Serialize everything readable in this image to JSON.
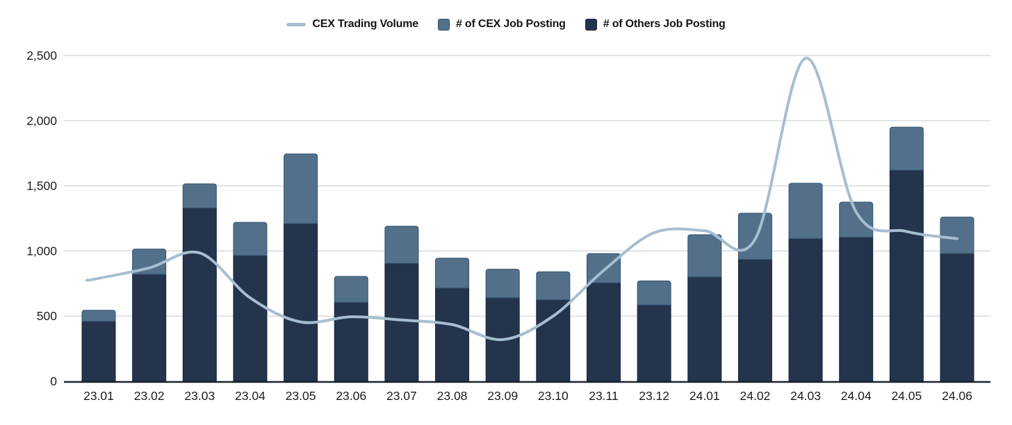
{
  "chart_data": {
    "type": "combo",
    "stacked_bars": true,
    "categories": [
      "23.01",
      "23.02",
      "23.03",
      "23.04",
      "23.05",
      "23.06",
      "23.07",
      "23.08",
      "23.09",
      "23.10",
      "23.11",
      "23.12",
      "24.01",
      "24.02",
      "24.03",
      "24.04",
      "24.05",
      "24.06"
    ],
    "series": [
      {
        "name": "CEX Trading Volume",
        "type": "line",
        "color": "#a6becf",
        "values": [
          790,
          870,
          985,
          640,
          455,
          495,
          470,
          435,
          320,
          500,
          850,
          1140,
          1155,
          1090,
          2480,
          1300,
          1150,
          1095
        ]
      },
      {
        "name": "# of CEX Job Posting",
        "type": "bar",
        "color": "#53708b",
        "stroke": "#31506e",
        "values": [
          85,
          195,
          185,
          255,
          535,
          200,
          285,
          230,
          220,
          215,
          225,
          185,
          325,
          355,
          425,
          270,
          330,
          280
        ]
      },
      {
        "name": "# of Others Job Posting",
        "type": "bar",
        "color": "#24344c",
        "stroke": "#132440",
        "values": [
          460,
          820,
          1330,
          965,
          1210,
          605,
          905,
          715,
          640,
          625,
          755,
          585,
          800,
          935,
          1095,
          1105,
          1620,
          980
        ]
      }
    ],
    "stack_totals": [
      545,
      1015,
      1515,
      1220,
      1745,
      805,
      1190,
      945,
      860,
      840,
      980,
      770,
      1125,
      1290,
      1520,
      1375,
      1950,
      1260
    ],
    "ylim": [
      0,
      2500
    ],
    "yticks": [
      {
        "value": 0,
        "label": "0"
      },
      {
        "value": 500,
        "label": "500"
      },
      {
        "value": 1000,
        "label": "1,000"
      },
      {
        "value": 1500,
        "label": "1,500"
      },
      {
        "value": 2000,
        "label": "2,000"
      },
      {
        "value": 2500,
        "label": "2,500"
      }
    ],
    "grid": "horizontal",
    "legend_position": "top",
    "colors": {
      "gridline": "#cfd2d6",
      "axis_line": "#19222e",
      "tick_text": "#1c1c1c",
      "background": "#ffffff"
    }
  }
}
